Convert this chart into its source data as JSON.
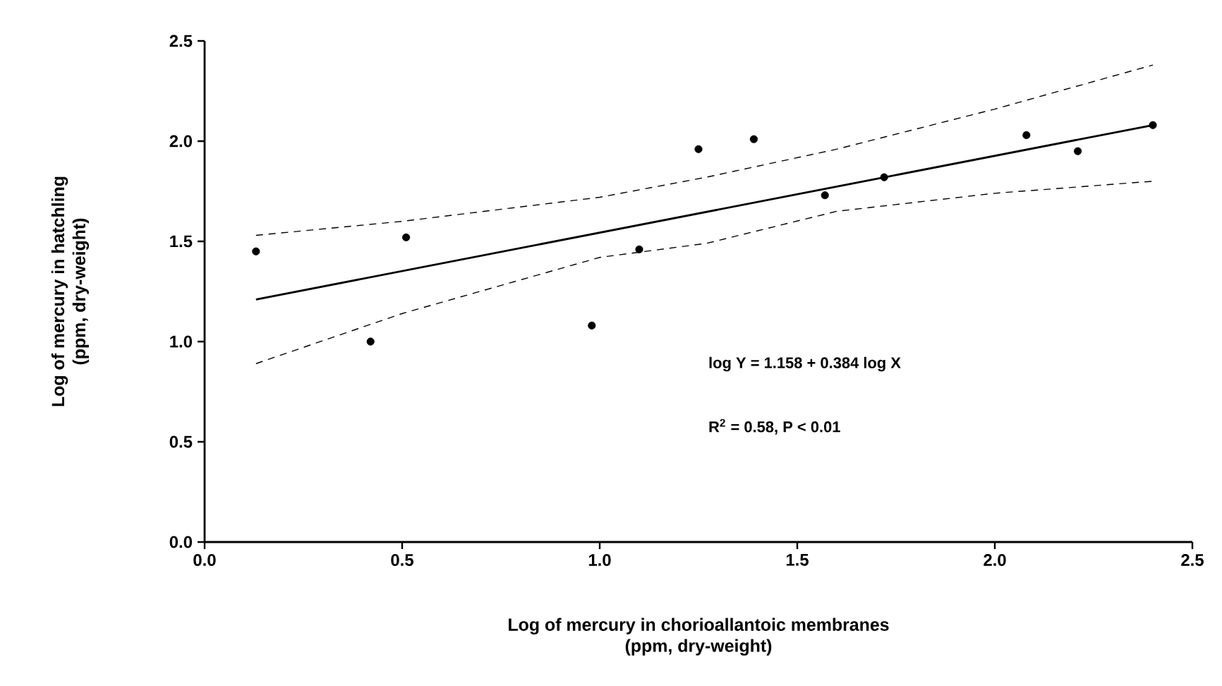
{
  "chart_data": {
    "type": "scatter",
    "xlabel": "Log of mercury in chorioallantoic membranes\n(ppm, dry-weight)",
    "ylabel": "Log of mercury in hatchling\n(ppm, dry-weight)",
    "xlim": [
      0,
      2.5
    ],
    "ylim": [
      0,
      2.5
    ],
    "xticks": [
      {
        "value": 0,
        "label": "0.0"
      },
      {
        "value": 0.5,
        "label": "0.5"
      },
      {
        "value": 1,
        "label": "1.0"
      },
      {
        "value": 1.5,
        "label": "1.5"
      },
      {
        "value": 2,
        "label": "2.0"
      },
      {
        "value": 2.5,
        "label": "2.5"
      }
    ],
    "yticks": [
      {
        "value": 0,
        "label": "0.0"
      },
      {
        "value": 0.5,
        "label": "0.5"
      },
      {
        "value": 1,
        "label": "1.0"
      },
      {
        "value": 1.5,
        "label": "1.5"
      },
      {
        "value": 2,
        "label": "2.0"
      },
      {
        "value": 2.5,
        "label": "2.5"
      }
    ],
    "marker": "circle",
    "annotations": [
      "log Y = 1.158 + 0.384 log X",
      "R$^{2}$ = 0.58,  P < 0.01"
    ],
    "series": [
      {
        "color": "#000000",
        "x": [
          0.13,
          0.42,
          0.51,
          0.98,
          1.1,
          1.25,
          1.39,
          1.57,
          1.72,
          2.08,
          2.21,
          2.4
        ],
        "values": [
          1.45,
          1.0,
          1.52,
          1.08,
          1.46,
          1.96,
          2.01,
          1.73,
          1.82,
          2.03,
          1.95,
          2.08
        ]
      },
      {
        "type": "line",
        "marker": "none",
        "line_style": "solid",
        "color": "#000000",
        "x": [
          0.13,
          2.4
        ],
        "values": [
          1.21,
          2.08
        ]
      },
      {
        "type": "line",
        "marker": "none",
        "line_style": "dashed",
        "color": "#000000",
        "x": [
          0.13,
          0.5,
          1.0,
          1.27,
          1.6,
          2.0,
          2.4
        ],
        "values": [
          1.53,
          1.6,
          1.72,
          1.82,
          1.96,
          2.16,
          2.38
        ]
      },
      {
        "type": "line",
        "marker": "none",
        "line_style": "dashed",
        "color": "#000000",
        "x": [
          0.13,
          0.5,
          1.0,
          1.27,
          1.6,
          2.0,
          2.4
        ],
        "values": [
          0.89,
          1.14,
          1.42,
          1.49,
          1.65,
          1.74,
          1.8
        ]
      }
    ]
  }
}
